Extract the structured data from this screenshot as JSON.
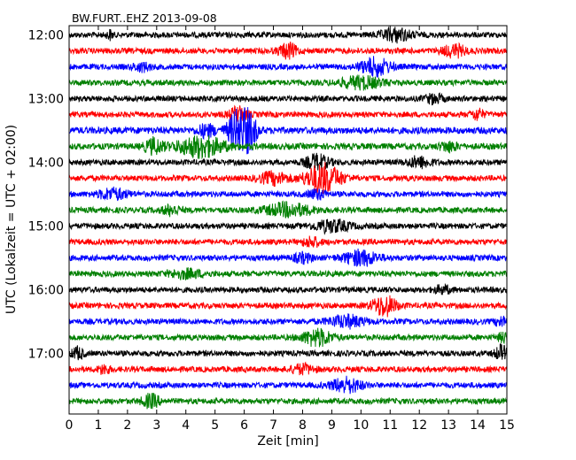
{
  "chart_data": {
    "type": "line",
    "title": "BW.FURT..EHZ 2013-09-08",
    "xlabel": "Zeit  [min]",
    "ylabel": "UTC (Lokalzeit = UTC + 02:00)",
    "xlim": [
      0,
      15
    ],
    "x_ticks": [
      "0",
      "1",
      "2",
      "3",
      "4",
      "5",
      "6",
      "7",
      "8",
      "9",
      "10",
      "11",
      "12",
      "13",
      "14",
      "15"
    ],
    "y_ticks": [
      "12:00",
      "13:00",
      "14:00",
      "15:00",
      "16:00",
      "17:00"
    ],
    "row_minutes": 15,
    "start_time": "12:00",
    "colors": [
      "#000000",
      "#ff0000",
      "#0000ff",
      "#008000"
    ],
    "grid": false,
    "legend": "none",
    "series": [
      {
        "label": "12:00",
        "color": "#000000",
        "amp": 1.0,
        "events": [
          {
            "t": 11.2,
            "a": 2.2,
            "w": 0.5
          },
          {
            "t": 1.4,
            "a": 1.5,
            "w": 0.1
          }
        ]
      },
      {
        "label": "12:15",
        "color": "#ff0000",
        "amp": 1.0,
        "events": [
          {
            "t": 7.5,
            "a": 2.5,
            "w": 0.3
          },
          {
            "t": 13.2,
            "a": 2.0,
            "w": 0.4
          }
        ]
      },
      {
        "label": "12:30",
        "color": "#0000ff",
        "amp": 1.0,
        "events": [
          {
            "t": 10.5,
            "a": 3.0,
            "w": 0.5
          },
          {
            "t": 2.5,
            "a": 1.3,
            "w": 0.3
          }
        ]
      },
      {
        "label": "12:45",
        "color": "#008000",
        "amp": 1.0,
        "events": [
          {
            "t": 10.0,
            "a": 2.0,
            "w": 0.7
          }
        ]
      },
      {
        "label": "13:00",
        "color": "#000000",
        "amp": 1.0,
        "events": [
          {
            "t": 12.5,
            "a": 1.5,
            "w": 0.3
          }
        ]
      },
      {
        "label": "13:15",
        "color": "#ff0000",
        "amp": 1.0,
        "events": [
          {
            "t": 5.8,
            "a": 2.5,
            "w": 0.3
          },
          {
            "t": 14.0,
            "a": 1.8,
            "w": 0.2
          }
        ]
      },
      {
        "label": "13:30",
        "color": "#0000ff",
        "amp": 1.2,
        "events": [
          {
            "t": 5.8,
            "a": 7.0,
            "w": 0.35
          },
          {
            "t": 6.2,
            "a": 5.0,
            "w": 0.25
          },
          {
            "t": 4.7,
            "a": 2.0,
            "w": 0.3
          }
        ]
      },
      {
        "label": "13:45",
        "color": "#008000",
        "amp": 1.1,
        "events": [
          {
            "t": 4.5,
            "a": 3.5,
            "w": 0.8
          },
          {
            "t": 2.9,
            "a": 2.5,
            "w": 0.3
          },
          {
            "t": 13.0,
            "a": 1.5,
            "w": 0.3
          }
        ]
      },
      {
        "label": "14:00",
        "color": "#000000",
        "amp": 1.0,
        "events": [
          {
            "t": 8.5,
            "a": 2.5,
            "w": 0.4
          },
          {
            "t": 12.0,
            "a": 1.8,
            "w": 0.4
          }
        ]
      },
      {
        "label": "14:15",
        "color": "#ff0000",
        "amp": 1.0,
        "events": [
          {
            "t": 8.7,
            "a": 5.0,
            "w": 0.6
          },
          {
            "t": 7.0,
            "a": 2.0,
            "w": 0.5
          }
        ]
      },
      {
        "label": "14:30",
        "color": "#0000ff",
        "amp": 1.0,
        "events": [
          {
            "t": 1.5,
            "a": 1.8,
            "w": 0.5
          },
          {
            "t": 8.5,
            "a": 1.5,
            "w": 0.3
          }
        ]
      },
      {
        "label": "14:45",
        "color": "#008000",
        "amp": 1.0,
        "events": [
          {
            "t": 7.5,
            "a": 2.2,
            "w": 0.8
          },
          {
            "t": 3.5,
            "a": 1.6,
            "w": 0.3
          }
        ]
      },
      {
        "label": "15:00",
        "color": "#000000",
        "amp": 1.0,
        "events": [
          {
            "t": 9.0,
            "a": 2.0,
            "w": 0.6
          }
        ]
      },
      {
        "label": "15:15",
        "color": "#ff0000",
        "amp": 1.0,
        "events": [
          {
            "t": 8.3,
            "a": 1.6,
            "w": 0.3
          }
        ]
      },
      {
        "label": "15:30",
        "color": "#0000ff",
        "amp": 1.0,
        "events": [
          {
            "t": 10.0,
            "a": 2.5,
            "w": 0.6
          },
          {
            "t": 8.0,
            "a": 1.5,
            "w": 0.3
          }
        ]
      },
      {
        "label": "15:45",
        "color": "#008000",
        "amp": 1.0,
        "events": [
          {
            "t": 4.0,
            "a": 1.4,
            "w": 0.6
          }
        ]
      },
      {
        "label": "16:00",
        "color": "#000000",
        "amp": 1.0,
        "events": [
          {
            "t": 12.8,
            "a": 1.2,
            "w": 0.3
          }
        ]
      },
      {
        "label": "16:15",
        "color": "#ff0000",
        "amp": 1.0,
        "events": [
          {
            "t": 10.8,
            "a": 3.5,
            "w": 0.4
          }
        ]
      },
      {
        "label": "16:30",
        "color": "#0000ff",
        "amp": 1.0,
        "events": [
          {
            "t": 9.5,
            "a": 2.0,
            "w": 0.6
          },
          {
            "t": 14.8,
            "a": 1.5,
            "w": 0.2
          }
        ]
      },
      {
        "label": "16:45",
        "color": "#008000",
        "amp": 1.0,
        "events": [
          {
            "t": 8.5,
            "a": 2.8,
            "w": 0.5
          },
          {
            "t": 14.9,
            "a": 1.5,
            "w": 0.2
          }
        ]
      },
      {
        "label": "17:00",
        "color": "#000000",
        "amp": 1.0,
        "events": [
          {
            "t": 0.3,
            "a": 2.0,
            "w": 0.2
          },
          {
            "t": 14.8,
            "a": 2.5,
            "w": 0.2
          }
        ]
      },
      {
        "label": "17:15",
        "color": "#ff0000",
        "amp": 1.0,
        "events": [
          {
            "t": 8.0,
            "a": 1.5,
            "w": 0.4
          },
          {
            "t": 1.2,
            "a": 1.5,
            "w": 0.2
          }
        ]
      },
      {
        "label": "17:30",
        "color": "#0000ff",
        "amp": 1.0,
        "events": [
          {
            "t": 9.5,
            "a": 2.5,
            "w": 0.5
          }
        ]
      },
      {
        "label": "17:45",
        "color": "#008000",
        "amp": 1.0,
        "events": [
          {
            "t": 2.8,
            "a": 2.2,
            "w": 0.3
          }
        ]
      }
    ]
  }
}
